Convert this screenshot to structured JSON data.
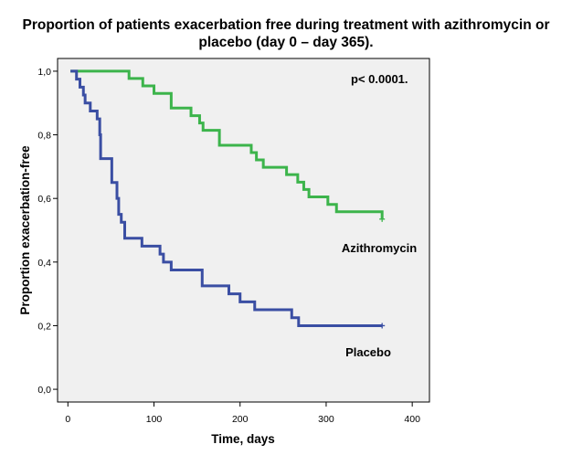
{
  "chart_data": {
    "type": "line",
    "title_line1": "Proportion of patients exacerbation free during treatment with azithromycin or",
    "title_line2": "placebo (day 0 – day 365).",
    "xlabel": "Time, days",
    "ylabel": "Proportion exacerbation-free",
    "xlim": [
      -12,
      420
    ],
    "ylim": [
      -0.04,
      1.04
    ],
    "xticks": [
      {
        "value": 0,
        "label": "0"
      },
      {
        "value": 100,
        "label": "100"
      },
      {
        "value": 200,
        "label": "200"
      },
      {
        "value": 300,
        "label": "300"
      },
      {
        "value": 400,
        "label": "400"
      }
    ],
    "yticks": [
      {
        "value": 0.0,
        "label": "0,0"
      },
      {
        "value": 0.2,
        "label": "0,2"
      },
      {
        "value": 0.4,
        "label": "0,4"
      },
      {
        "value": 0.6,
        "label": "0,6"
      },
      {
        "value": 0.8,
        "label": "0,8"
      },
      {
        "value": 1.0,
        "label": "1,0"
      }
    ],
    "grid": false,
    "annotation": "p< 0.0001.",
    "series": [
      {
        "name": "Azithromycin",
        "color": "#3cb44b",
        "censor": {
          "x": 365,
          "y": 0.535
        },
        "x": [
          3,
          71,
          87,
          100,
          120,
          143,
          153,
          157,
          176,
          213,
          219,
          227,
          254,
          267,
          274,
          280,
          302,
          312,
          365
        ],
        "y": [
          1.0,
          0.977,
          0.954,
          0.93,
          0.884,
          0.86,
          0.837,
          0.814,
          0.767,
          0.744,
          0.721,
          0.698,
          0.675,
          0.651,
          0.628,
          0.605,
          0.581,
          0.558,
          0.535
        ]
      },
      {
        "name": "Placebo",
        "color": "#3a4ea3",
        "censor": {
          "x": 365,
          "y": 0.2
        },
        "x": [
          3,
          10,
          14,
          18,
          20,
          26,
          34,
          37,
          38,
          51,
          57,
          59,
          62,
          66,
          86,
          107,
          111,
          120,
          156,
          187,
          200,
          217,
          260,
          268,
          365
        ],
        "y": [
          1.0,
          0.975,
          0.95,
          0.925,
          0.9,
          0.875,
          0.85,
          0.8,
          0.725,
          0.65,
          0.6,
          0.55,
          0.525,
          0.475,
          0.45,
          0.425,
          0.4,
          0.375,
          0.325,
          0.3,
          0.275,
          0.25,
          0.225,
          0.2,
          0.2
        ]
      }
    ]
  }
}
